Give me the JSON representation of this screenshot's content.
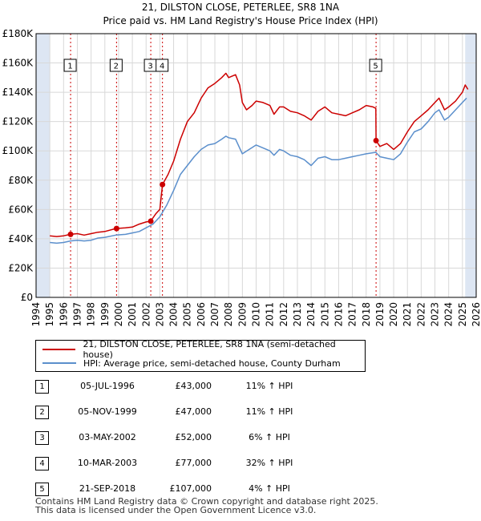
{
  "header": {
    "title": "21, DILSTON CLOSE, PETERLEE, SR8 1NA",
    "subtitle": "Price paid vs. HM Land Registry's House Price Index (HPI)"
  },
  "colors": {
    "property": "#cc0000",
    "hpi": "#5b8fcc",
    "shade": "#dde6f3",
    "grid": "#d8d8d8",
    "marker_line": "#cc0000"
  },
  "chart_data": {
    "type": "line",
    "title": "21, DILSTON CLOSE, PETERLEE, SR8 1NA",
    "subtitle": "Price paid vs. HM Land Registry's House Price Index (HPI)",
    "xlim": [
      1994,
      2026
    ],
    "ylim": [
      0,
      180000
    ],
    "x_ticks": [
      1994,
      1995,
      1996,
      1997,
      1998,
      1999,
      2000,
      2001,
      2002,
      2003,
      2004,
      2005,
      2006,
      2007,
      2008,
      2009,
      2010,
      2011,
      2012,
      2013,
      2014,
      2015,
      2016,
      2017,
      2018,
      2019,
      2020,
      2021,
      2022,
      2023,
      2024,
      2025,
      2026
    ],
    "y_ticks": [
      0,
      20000,
      40000,
      60000,
      80000,
      100000,
      120000,
      140000,
      160000,
      180000
    ],
    "y_tick_labels": [
      "£0",
      "£20K",
      "£40K",
      "£60K",
      "£80K",
      "£100K",
      "£120K",
      "£140K",
      "£160K",
      "£180K"
    ],
    "shaded_ranges": [
      [
        1994,
        1995
      ],
      [
        2025.2,
        2026
      ]
    ],
    "series": [
      {
        "name": "21, DILSTON CLOSE, PETERLEE, SR8 1NA (semi-detached house)",
        "points": [
          [
            1995,
            42000
          ],
          [
            1995.5,
            41500
          ],
          [
            1996,
            42000
          ],
          [
            1996.5,
            43000
          ],
          [
            1997,
            43500
          ],
          [
            1997.5,
            42500
          ],
          [
            1998,
            43500
          ],
          [
            1998.5,
            44500
          ],
          [
            1999,
            45000
          ],
          [
            1999.8,
            47000
          ],
          [
            2000.5,
            47500
          ],
          [
            2001,
            48000
          ],
          [
            2001.5,
            50000
          ],
          [
            2002,
            51500
          ],
          [
            2002.33,
            52000
          ],
          [
            2002.7,
            57000
          ],
          [
            2003,
            60000
          ],
          [
            2003.19,
            77000
          ],
          [
            2003.6,
            84000
          ],
          [
            2004,
            93000
          ],
          [
            2004.5,
            108000
          ],
          [
            2005,
            120000
          ],
          [
            2005.5,
            126000
          ],
          [
            2006,
            136000
          ],
          [
            2006.5,
            143000
          ],
          [
            2007,
            146000
          ],
          [
            2007.5,
            150000
          ],
          [
            2007.8,
            153000
          ],
          [
            2008,
            150000
          ],
          [
            2008.5,
            152000
          ],
          [
            2008.8,
            145000
          ],
          [
            2009,
            133000
          ],
          [
            2009.3,
            128000
          ],
          [
            2009.7,
            131000
          ],
          [
            2010,
            134000
          ],
          [
            2010.5,
            133000
          ],
          [
            2011,
            131000
          ],
          [
            2011.3,
            125000
          ],
          [
            2011.7,
            130000
          ],
          [
            2012,
            130000
          ],
          [
            2012.5,
            127000
          ],
          [
            2013,
            126000
          ],
          [
            2013.5,
            124000
          ],
          [
            2014,
            121000
          ],
          [
            2014.5,
            127000
          ],
          [
            2015,
            130000
          ],
          [
            2015.5,
            126000
          ],
          [
            2016,
            125000
          ],
          [
            2016.5,
            124000
          ],
          [
            2017,
            126000
          ],
          [
            2017.5,
            128000
          ],
          [
            2018,
            131000
          ],
          [
            2018.5,
            130000
          ],
          [
            2018.7,
            129000
          ],
          [
            2018.72,
            107000
          ],
          [
            2019,
            103000
          ],
          [
            2019.5,
            105000
          ],
          [
            2020,
            101000
          ],
          [
            2020.5,
            105000
          ],
          [
            2021,
            113000
          ],
          [
            2021.5,
            120000
          ],
          [
            2022,
            124000
          ],
          [
            2022.5,
            128000
          ],
          [
            2023,
            133000
          ],
          [
            2023.3,
            136000
          ],
          [
            2023.7,
            128000
          ],
          [
            2024,
            130000
          ],
          [
            2024.5,
            134000
          ],
          [
            2025,
            140000
          ],
          [
            2025.2,
            145000
          ],
          [
            2025.4,
            142000
          ]
        ]
      },
      {
        "name": "HPI: Average price, semi-detached house, County Durham",
        "points": [
          [
            1995,
            37500
          ],
          [
            1995.5,
            37000
          ],
          [
            1996,
            37500
          ],
          [
            1996.5,
            38500
          ],
          [
            1997,
            39000
          ],
          [
            1997.5,
            38500
          ],
          [
            1998,
            39000
          ],
          [
            1998.5,
            40500
          ],
          [
            1999,
            41000
          ],
          [
            1999.8,
            42500
          ],
          [
            2000.5,
            43000
          ],
          [
            2001,
            44000
          ],
          [
            2001.5,
            45000
          ],
          [
            2002,
            47500
          ],
          [
            2002.5,
            50000
          ],
          [
            2003,
            55000
          ],
          [
            2003.5,
            63000
          ],
          [
            2004,
            73000
          ],
          [
            2004.5,
            84000
          ],
          [
            2005,
            90000
          ],
          [
            2005.5,
            96000
          ],
          [
            2006,
            101000
          ],
          [
            2006.5,
            104000
          ],
          [
            2007,
            105000
          ],
          [
            2007.5,
            108000
          ],
          [
            2007.8,
            110000
          ],
          [
            2008,
            109000
          ],
          [
            2008.5,
            108000
          ],
          [
            2009,
            98000
          ],
          [
            2009.5,
            101000
          ],
          [
            2010,
            104000
          ],
          [
            2010.5,
            102000
          ],
          [
            2011,
            100000
          ],
          [
            2011.3,
            97000
          ],
          [
            2011.7,
            101000
          ],
          [
            2012,
            100000
          ],
          [
            2012.5,
            97000
          ],
          [
            2013,
            96000
          ],
          [
            2013.5,
            94000
          ],
          [
            2014,
            90000
          ],
          [
            2014.5,
            95000
          ],
          [
            2015,
            96000
          ],
          [
            2015.5,
            94000
          ],
          [
            2016,
            94000
          ],
          [
            2016.5,
            95000
          ],
          [
            2017,
            96000
          ],
          [
            2017.5,
            97000
          ],
          [
            2018,
            98000
          ],
          [
            2018.7,
            99000
          ],
          [
            2019,
            96000
          ],
          [
            2019.5,
            95000
          ],
          [
            2020,
            94000
          ],
          [
            2020.5,
            98000
          ],
          [
            2021,
            106000
          ],
          [
            2021.5,
            113000
          ],
          [
            2022,
            115000
          ],
          [
            2022.5,
            120000
          ],
          [
            2023,
            126000
          ],
          [
            2023.3,
            128000
          ],
          [
            2023.7,
            121000
          ],
          [
            2024,
            123000
          ],
          [
            2024.5,
            128000
          ],
          [
            2025,
            133000
          ],
          [
            2025.3,
            136000
          ]
        ]
      }
    ],
    "sales": [
      {
        "id": "1",
        "x": 1996.51,
        "price": 43000,
        "date": "05-JUL-1996",
        "price_label": "£43,000",
        "hpi": "11% ↑ HPI"
      },
      {
        "id": "2",
        "x": 1999.85,
        "price": 47000,
        "date": "05-NOV-1999",
        "price_label": "£47,000",
        "hpi": "11% ↑ HPI"
      },
      {
        "id": "3",
        "x": 2002.34,
        "price": 52000,
        "date": "03-MAY-2002",
        "price_label": "£52,000",
        "hpi": "6% ↑ HPI"
      },
      {
        "id": "4",
        "x": 2003.19,
        "price": 77000,
        "date": "10-MAR-2003",
        "price_label": "£77,000",
        "hpi": "32% ↑ HPI"
      },
      {
        "id": "5",
        "x": 2018.72,
        "price": 107000,
        "date": "21-SEP-2018",
        "price_label": "£107,000",
        "hpi": "4% ↑ HPI"
      }
    ]
  },
  "legend": {
    "property_label": "21, DILSTON CLOSE, PETERLEE, SR8 1NA (semi-detached house)",
    "hpi_label": "HPI: Average price, semi-detached house, County Durham"
  },
  "footer": {
    "line1": "Contains HM Land Registry data © Crown copyright and database right 2025.",
    "line2": "This data is licensed under the Open Government Licence v3.0."
  }
}
